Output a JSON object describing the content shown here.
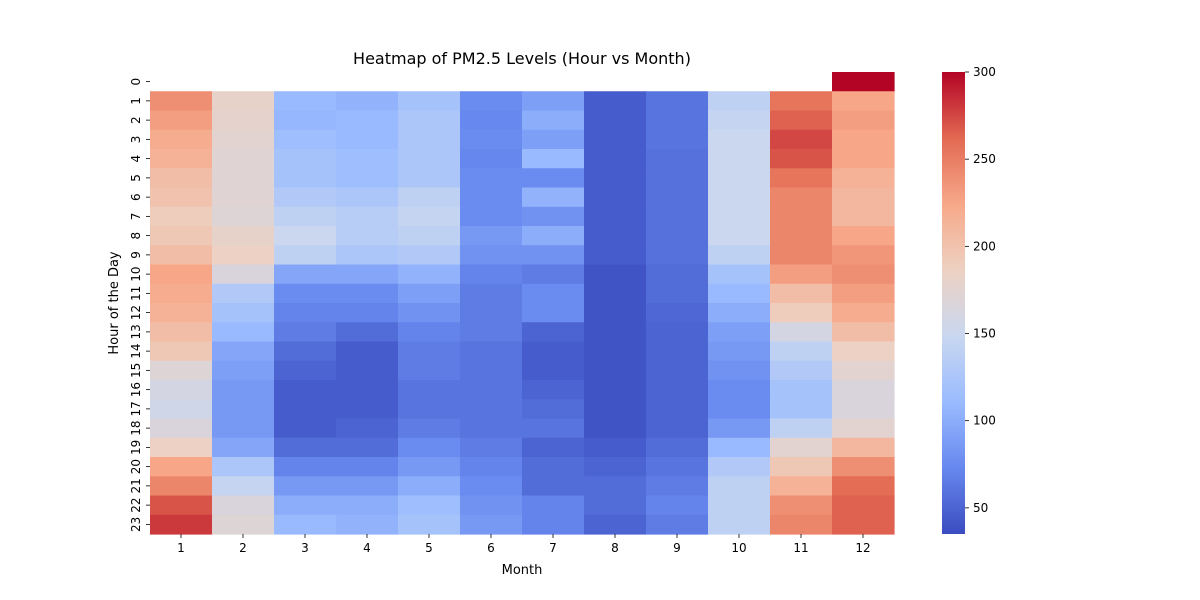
{
  "chart_data": {
    "type": "heatmap",
    "title": "Heatmap of PM2.5 Levels (Hour vs Month)",
    "xlabel": "Month",
    "ylabel": "Hour of the Day",
    "x_categories": [
      "1",
      "2",
      "3",
      "4",
      "5",
      "6",
      "7",
      "8",
      "9",
      "10",
      "11",
      "12"
    ],
    "y_categories": [
      "0",
      "1",
      "2",
      "3",
      "4",
      "5",
      "6",
      "7",
      "8",
      "9",
      "10",
      "11",
      "12",
      "13",
      "14",
      "15",
      "16",
      "17",
      "18",
      "19",
      "20",
      "21",
      "22",
      "23"
    ],
    "colormap": "coolwarm",
    "colorbar": {
      "min": 35,
      "max": 300,
      "ticks": [
        50,
        100,
        150,
        200,
        250,
        300
      ]
    },
    "cmap_colors": [
      "#3b4cc0",
      "#6788ee",
      "#9abbff",
      "#c9d7f0",
      "#edd1c2",
      "#f7a889",
      "#e26952",
      "#b40426"
    ],
    "values": [
      [
        null,
        null,
        null,
        null,
        null,
        null,
        null,
        null,
        null,
        null,
        null,
        300
      ],
      [
        240,
        180,
        110,
        105,
        120,
        75,
        90,
        45,
        60,
        140,
        255,
        225
      ],
      [
        230,
        178,
        108,
        110,
        125,
        73,
        100,
        45,
        60,
        145,
        265,
        230
      ],
      [
        220,
        175,
        115,
        110,
        125,
        75,
        90,
        45,
        60,
        150,
        275,
        225
      ],
      [
        215,
        172,
        120,
        115,
        125,
        72,
        110,
        45,
        58,
        150,
        270,
        225
      ],
      [
        205,
        172,
        120,
        115,
        125,
        75,
        75,
        45,
        58,
        150,
        255,
        215
      ],
      [
        200,
        172,
        130,
        125,
        140,
        75,
        105,
        45,
        58,
        150,
        245,
        210
      ],
      [
        190,
        170,
        140,
        135,
        145,
        75,
        80,
        45,
        58,
        150,
        245,
        210
      ],
      [
        195,
        180,
        150,
        135,
        140,
        85,
        100,
        45,
        58,
        150,
        245,
        225
      ],
      [
        205,
        185,
        140,
        125,
        130,
        80,
        80,
        45,
        58,
        140,
        245,
        235
      ],
      [
        225,
        165,
        95,
        95,
        105,
        70,
        65,
        40,
        55,
        120,
        230,
        240
      ],
      [
        220,
        130,
        75,
        75,
        90,
        65,
        75,
        40,
        55,
        110,
        205,
        230
      ],
      [
        215,
        120,
        70,
        70,
        80,
        65,
        75,
        40,
        52,
        100,
        190,
        220
      ],
      [
        205,
        110,
        65,
        55,
        70,
        65,
        50,
        40,
        50,
        90,
        160,
        205
      ],
      [
        195,
        95,
        55,
        45,
        65,
        60,
        45,
        40,
        50,
        85,
        140,
        185
      ],
      [
        170,
        90,
        50,
        45,
        65,
        60,
        45,
        40,
        50,
        80,
        130,
        175
      ],
      [
        160,
        85,
        45,
        45,
        60,
        60,
        50,
        40,
        50,
        75,
        120,
        165
      ],
      [
        155,
        85,
        45,
        45,
        60,
        60,
        55,
        40,
        50,
        75,
        120,
        165
      ],
      [
        165,
        85,
        45,
        50,
        65,
        60,
        60,
        40,
        50,
        85,
        140,
        175
      ],
      [
        185,
        95,
        55,
        55,
        75,
        65,
        50,
        45,
        55,
        110,
        175,
        210
      ],
      [
        225,
        125,
        70,
        70,
        85,
        70,
        55,
        50,
        60,
        130,
        195,
        240
      ],
      [
        245,
        145,
        85,
        85,
        100,
        75,
        55,
        55,
        65,
        140,
        215,
        260
      ],
      [
        270,
        165,
        100,
        100,
        115,
        80,
        70,
        55,
        70,
        140,
        240,
        265
      ],
      [
        280,
        170,
        110,
        105,
        120,
        85,
        70,
        50,
        65,
        140,
        245,
        265
      ]
    ]
  }
}
